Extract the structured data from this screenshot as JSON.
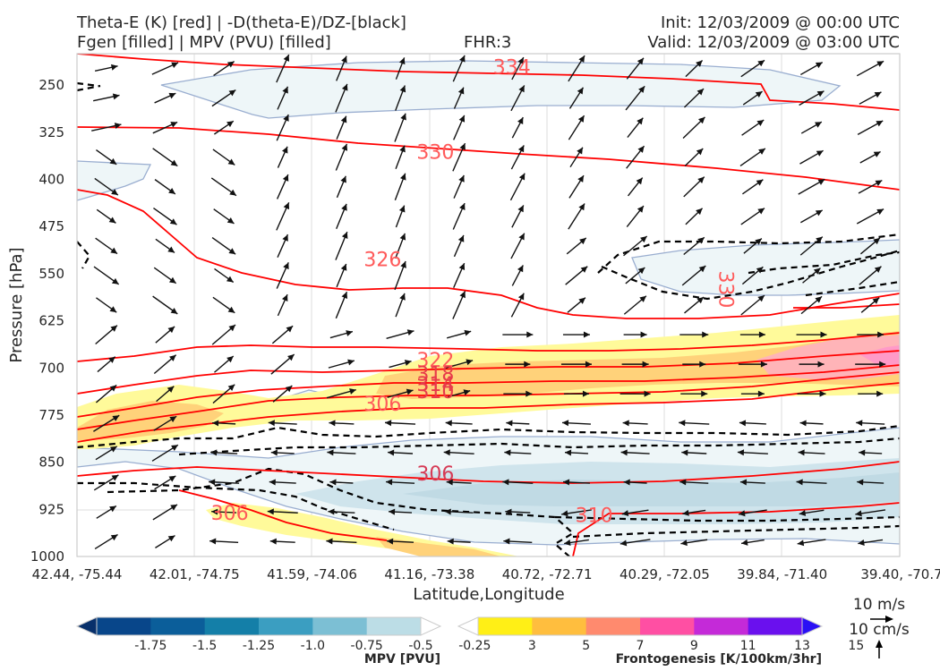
{
  "header": {
    "title_left_1": "Theta-E (K) [red] | -D(theta-E)/DZ-[black]",
    "title_left_2": "Fgen [filled] | MPV (PVU) [filled]",
    "fhr": "FHR:3",
    "init": "Init: 12/03/2009 @ 00:00 UTC",
    "valid": "Valid: 12/03/2009 @ 03:00 UTC"
  },
  "chart_data": {
    "type": "contour cross-section",
    "ylabel": "Pressure [hPa]",
    "xlabel": "Latitude,Longitude",
    "y_ticks": [
      "250",
      "325",
      "400",
      "475",
      "550",
      "625",
      "700",
      "775",
      "850",
      "925",
      "1000"
    ],
    "y_tick_values": [
      250,
      325,
      400,
      475,
      550,
      625,
      700,
      775,
      850,
      925,
      1000
    ],
    "ylim": [
      1000,
      200
    ],
    "x_ticks": [
      "42.44, -75.44",
      "42.01, -74.75",
      "41.59, -74.06",
      "41.16, -73.38",
      "40.72, -72.71",
      "40.29, -72.05",
      "39.84, -71.40",
      "39.40, -70.7"
    ],
    "theta_e_contour_labels": [
      {
        "text": "334",
        "x_index": 3.7,
        "p": 222
      },
      {
        "text": "330",
        "x_index": 3.05,
        "p": 357
      },
      {
        "text": "326",
        "x_index": 2.6,
        "p": 528
      },
      {
        "text": "322",
        "x_index": 3.05,
        "p": 688
      },
      {
        "text": "318",
        "x_index": 3.05,
        "p": 710
      },
      {
        "text": "314",
        "x_index": 3.05,
        "p": 727
      },
      {
        "text": "310",
        "x_index": 3.05,
        "p": 738
      },
      {
        "text": "306",
        "x_index": 2.6,
        "p": 758
      },
      {
        "text": "306",
        "x_index": 3.05,
        "p": 869
      },
      {
        "text": "306",
        "x_index": 1.3,
        "p": 932
      },
      {
        "text": "310",
        "x_index": 4.4,
        "p": 935
      },
      {
        "text": "330",
        "x_index": 5.52,
        "p": 575
      }
    ],
    "mpv_colorbar": {
      "label": "MPV [PVU]",
      "ticks": [
        "-1.75",
        "-1.5",
        "-1.25",
        "-1.0",
        "-0.75",
        "-0.5",
        "-0.25"
      ],
      "colors": [
        "#08306b",
        "#08468a",
        "#0b5e9a",
        "#147fa8",
        "#3b9ec1",
        "#7cbfd4",
        "#bcdde6",
        "#ffffff"
      ]
    },
    "fgen_colorbar": {
      "label": "Frontogenesis [K/100km/3hr]",
      "ticks": [
        "3",
        "5",
        "7",
        "9",
        "11",
        "13",
        "15"
      ],
      "colors": [
        "#ffffff",
        "#ffef16",
        "#ffbe3e",
        "#ff8a6e",
        "#ff4fa3",
        "#c42ad8",
        "#6a10ee",
        "#2a10f5"
      ]
    },
    "vector_keys": [
      {
        "label": "10 m/s",
        "direction": "horizontal"
      },
      {
        "label": "10 cm/s",
        "direction": "vertical"
      }
    ],
    "colors": {
      "theta_e": "#ff0000",
      "theta_e_label": "#ff5a5a",
      "mpv_fill_light": "#eef6f8",
      "mpv_fill_med": "#cfe4ec",
      "mpv_outline": "#9aaed0",
      "fgen_yellow": "#fffa9a",
      "fgen_orange": "#ffd27a",
      "fgen_pink": "#ffa0b8",
      "dtheta_dz": "#000000"
    }
  }
}
